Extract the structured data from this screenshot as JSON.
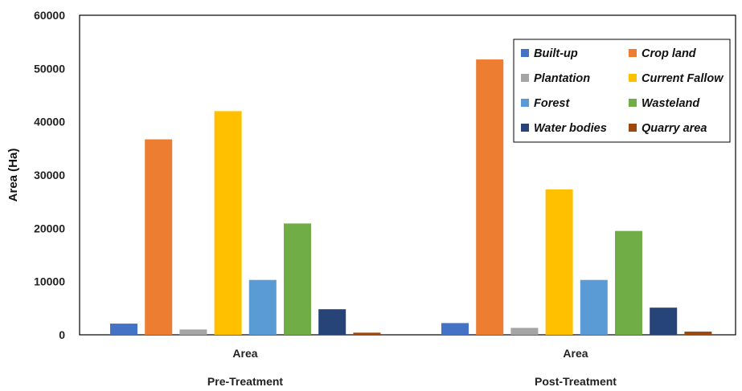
{
  "chart_data": {
    "type": "bar",
    "title": "",
    "ylabel": "Area (Ha)",
    "ylim": [
      0,
      60000
    ],
    "yticks": [
      "0",
      "10000",
      "20000",
      "30000",
      "40000",
      "50000",
      "60000"
    ],
    "grid": false,
    "legend_position": "top-right",
    "groups": [
      {
        "category": "Area",
        "treatment": "Pre-Treatment"
      },
      {
        "category": "Area",
        "treatment": "Post-Treatment"
      }
    ],
    "series": [
      {
        "name": "Built-up",
        "color": "#4472C4",
        "values": [
          2100,
          2200
        ]
      },
      {
        "name": "Crop land",
        "color": "#ED7D31",
        "values": [
          36700,
          51700
        ]
      },
      {
        "name": "Plantation",
        "color": "#A5A5A5",
        "values": [
          1000,
          1300
        ]
      },
      {
        "name": "Current Fallow",
        "color": "#FFC000",
        "values": [
          42000,
          27300
        ]
      },
      {
        "name": "Forest",
        "color": "#5B9BD5",
        "values": [
          10300,
          10300
        ]
      },
      {
        "name": "Wasteland",
        "color": "#70AD47",
        "values": [
          20900,
          19500
        ]
      },
      {
        "name": "Water bodies",
        "color": "#264478",
        "values": [
          4800,
          5100
        ]
      },
      {
        "name": "Quarry area",
        "color": "#9E480E",
        "values": [
          400,
          600
        ]
      }
    ]
  }
}
